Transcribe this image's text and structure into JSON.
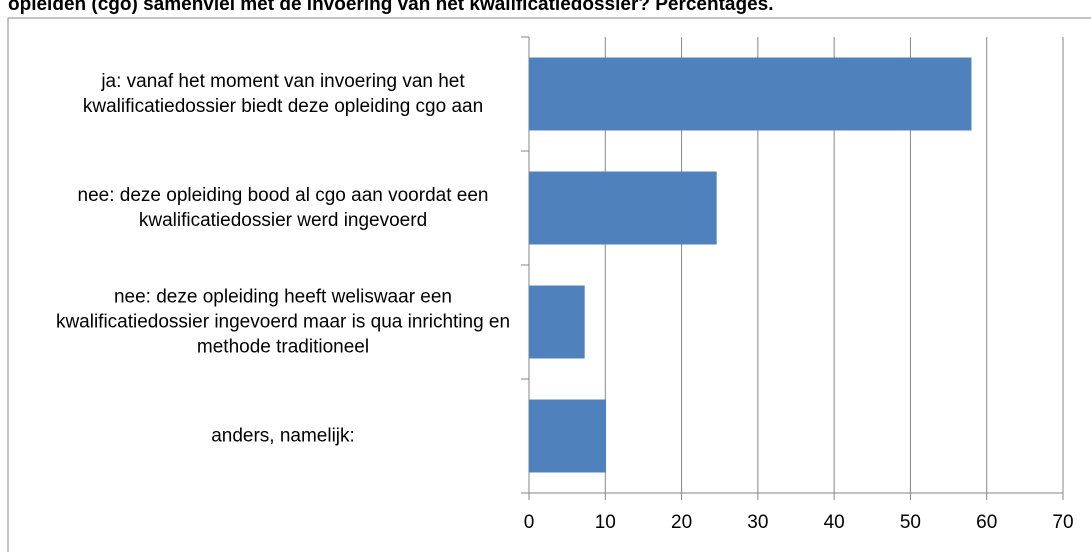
{
  "chart_data": {
    "type": "bar",
    "orientation": "horizontal",
    "title": "opleiden (cgo) samenviel met de invoering van het kwalificatiedossier? Percentages.",
    "categories": [
      "ja: vanaf het moment van invoering van het kwalificatiedossier biedt deze opleiding cgo aan",
      "nee: deze opleiding bood al cgo aan voordat een kwalificatiedossier werd ingevoerd",
      "nee: deze opleiding heeft weliswaar een kwalificatiedossier ingevoerd maar is qua inrichting en methode traditioneel",
      "anders, namelijk:"
    ],
    "values": [
      58,
      24.6,
      7.3,
      10.1
    ],
    "color": "#4f81bd",
    "xlim": [
      0,
      70
    ],
    "xticks": [
      0,
      10,
      20,
      30,
      40,
      50,
      60,
      70
    ],
    "grid": true
  }
}
